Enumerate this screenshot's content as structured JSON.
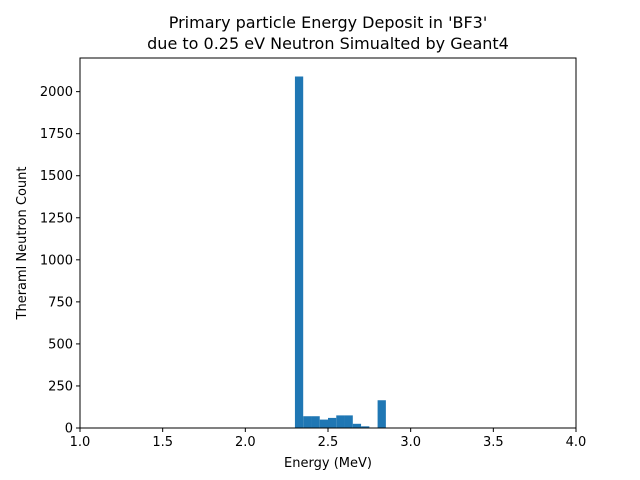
{
  "chart_data": {
    "type": "bar",
    "title": [
      "Primary particle Energy Deposit in 'BF3'",
      "due to 0.25 eV Neutron Simualted by Geant4"
    ],
    "xlabel": "Energy (MeV)",
    "ylabel": "Theraml Neutron Count",
    "xlim": [
      1.0,
      4.0
    ],
    "ylim": [
      0,
      2200
    ],
    "xticks": [
      1.0,
      1.5,
      2.0,
      2.5,
      3.0,
      3.5,
      4.0
    ],
    "xtick_labels": [
      "1.0",
      "1.5",
      "2.0",
      "2.5",
      "3.0",
      "3.5",
      "4.0"
    ],
    "yticks": [
      0,
      250,
      500,
      750,
      1000,
      1250,
      1500,
      1750,
      2000
    ],
    "ytick_labels": [
      "0",
      "250",
      "500",
      "750",
      "1000",
      "1250",
      "1500",
      "1750",
      "2000"
    ],
    "bin_width": 0.05,
    "bins": [
      {
        "x0": 2.3,
        "count": 2090
      },
      {
        "x0": 2.35,
        "count": 70
      },
      {
        "x0": 2.4,
        "count": 70
      },
      {
        "x0": 2.45,
        "count": 50
      },
      {
        "x0": 2.5,
        "count": 60
      },
      {
        "x0": 2.55,
        "count": 75
      },
      {
        "x0": 2.6,
        "count": 75
      },
      {
        "x0": 2.65,
        "count": 25
      },
      {
        "x0": 2.7,
        "count": 10
      },
      {
        "x0": 2.75,
        "count": 0
      },
      {
        "x0": 2.8,
        "count": 165
      }
    ],
    "bar_color": "#1f77b4",
    "grid": false,
    "legend": "none"
  }
}
